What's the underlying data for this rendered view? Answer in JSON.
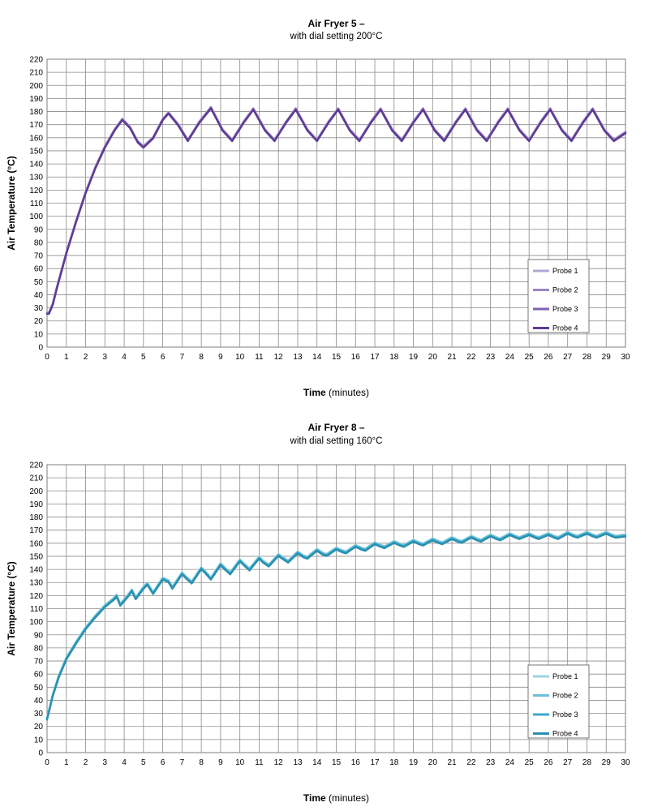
{
  "chart_data": [
    {
      "type": "line",
      "title": "Air Fryer 5 –",
      "subtitle": "with dial setting 200°C",
      "xlabel_bold": "Time",
      "xlabel_rest": "(minutes)",
      "ylabel": "Air Temperature (°C)",
      "xlim": [
        0,
        30
      ],
      "ylim": [
        0,
        220
      ],
      "x_ticks": [
        0,
        1,
        2,
        3,
        4,
        5,
        6,
        7,
        8,
        9,
        10,
        11,
        12,
        13,
        14,
        15,
        16,
        17,
        18,
        19,
        20,
        21,
        22,
        23,
        24,
        25,
        26,
        27,
        28,
        29,
        30
      ],
      "y_ticks": [
        0,
        10,
        20,
        30,
        40,
        50,
        60,
        70,
        80,
        90,
        100,
        110,
        120,
        130,
        140,
        150,
        160,
        170,
        180,
        190,
        200,
        210,
        220
      ],
      "grid": true,
      "legend_position": "bottom-right",
      "series": [
        {
          "name": "Probe 1",
          "color": "#b3a6d4",
          "offset": 0.6
        },
        {
          "name": "Probe 2",
          "color": "#9a86c6",
          "offset": 0.2
        },
        {
          "name": "Probe 3",
          "color": "#7e62b2",
          "offset": -0.2
        },
        {
          "name": "Probe 4",
          "color": "#5e3b93",
          "offset": -0.6
        }
      ],
      "x": [
        0,
        0.1,
        0.3,
        0.5,
        1,
        1.5,
        2,
        2.5,
        3,
        3.5,
        3.9,
        4.3,
        4.7,
        5,
        5.5,
        6,
        6.3,
        6.8,
        7.3,
        7.9,
        8.5,
        9.1,
        9.6,
        10.2,
        10.7,
        11.3,
        11.8,
        12.4,
        12.9,
        13.5,
        14,
        14.6,
        15.1,
        15.7,
        16.2,
        16.8,
        17.3,
        17.9,
        18.4,
        19,
        19.5,
        20.1,
        20.6,
        21.2,
        21.7,
        22.3,
        22.8,
        23.4,
        23.9,
        24.5,
        25,
        25.6,
        26.1,
        26.7,
        27.2,
        27.8,
        28.3,
        28.9,
        29.4,
        30
      ],
      "y": [
        26,
        26,
        33,
        45,
        72,
        96,
        118,
        137,
        153,
        166,
        174,
        168,
        157,
        153,
        160,
        174,
        179,
        170,
        158,
        172,
        183,
        166,
        158,
        172,
        182,
        166,
        158,
        172,
        182,
        166,
        158,
        172,
        182,
        166,
        158,
        172,
        182,
        166,
        158,
        172,
        182,
        166,
        158,
        172,
        182,
        166,
        158,
        172,
        182,
        166,
        158,
        172,
        182,
        166,
        158,
        172,
        182,
        166,
        158,
        164
      ]
    },
    {
      "type": "line",
      "title": "Air Fryer 8 –",
      "subtitle": "with dial setting 160°C",
      "xlabel_bold": "Time",
      "xlabel_rest": "(minutes)",
      "ylabel": "Air Temperature (°C)",
      "xlim": [
        0,
        30
      ],
      "ylim": [
        0,
        220
      ],
      "x_ticks": [
        0,
        1,
        2,
        3,
        4,
        5,
        6,
        7,
        8,
        9,
        10,
        11,
        12,
        13,
        14,
        15,
        16,
        17,
        18,
        19,
        20,
        21,
        22,
        23,
        24,
        25,
        26,
        27,
        28,
        29,
        30
      ],
      "y_ticks": [
        0,
        10,
        20,
        30,
        40,
        50,
        60,
        70,
        80,
        90,
        100,
        110,
        120,
        130,
        140,
        150,
        160,
        170,
        180,
        190,
        200,
        210,
        220
      ],
      "grid": true,
      "legend_position": "bottom-right",
      "series": [
        {
          "name": "Probe 1",
          "color": "#9ed3e4",
          "offset": 0.8
        },
        {
          "name": "Probe 2",
          "color": "#6cbfd6",
          "offset": 0.3
        },
        {
          "name": "Probe 3",
          "color": "#3ba9c8",
          "offset": -0.3
        },
        {
          "name": "Probe 4",
          "color": "#2a90b0",
          "offset": -0.8
        }
      ],
      "x": [
        0,
        0.3,
        0.6,
        1,
        1.5,
        2,
        2.5,
        3,
        3.5,
        3.6,
        3.8,
        4.2,
        4.4,
        4.6,
        5,
        5.2,
        5.5,
        6,
        6.3,
        6.5,
        7,
        7.2,
        7.5,
        8,
        8.2,
        8.5,
        9,
        9.2,
        9.5,
        10,
        10.2,
        10.5,
        11,
        11.2,
        11.5,
        12,
        12.3,
        12.5,
        13,
        13.3,
        13.5,
        14,
        14.3,
        14.5,
        15,
        15.3,
        15.5,
        16,
        16.3,
        16.5,
        17,
        17.3,
        17.5,
        18,
        18.3,
        18.5,
        19,
        19.3,
        19.5,
        20,
        20.3,
        20.5,
        21,
        21.3,
        21.5,
        22,
        22.3,
        22.5,
        23,
        23.3,
        23.5,
        24,
        24.3,
        24.5,
        25,
        25.3,
        25.5,
        26,
        26.3,
        26.5,
        27,
        27.3,
        27.5,
        28,
        28.3,
        28.5,
        29,
        29.3,
        29.5,
        30
      ],
      "y": [
        26,
        44,
        58,
        72,
        84,
        95,
        104,
        112,
        118,
        120,
        113,
        120,
        124,
        118,
        126,
        129,
        122,
        133,
        131,
        126,
        137,
        134,
        130,
        141,
        138,
        133,
        144,
        141,
        137,
        147,
        144,
        140,
        149,
        146,
        143,
        151,
        148,
        146,
        153,
        150,
        149,
        155,
        152,
        151,
        156,
        154,
        153,
        158,
        156,
        155,
        160,
        158,
        157,
        161,
        159,
        158,
        162,
        160,
        159,
        163,
        161,
        160,
        164,
        162,
        161,
        165,
        163,
        162,
        166,
        164,
        163,
        167,
        165,
        164,
        167,
        165,
        164,
        167,
        165,
        164,
        168,
        166,
        165,
        168,
        166,
        165,
        168,
        166,
        165,
        166
      ]
    }
  ]
}
